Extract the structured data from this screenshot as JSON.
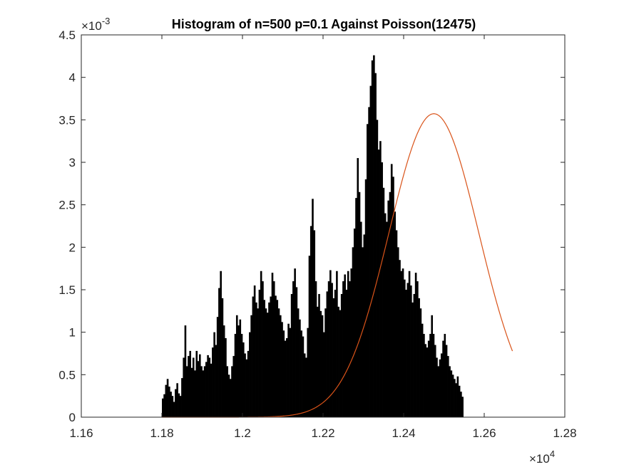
{
  "chart_data": {
    "type": "bar",
    "title": "Histogram of n=500 p=0.1 Against Poisson(12475)",
    "xlabel": "",
    "ylabel": "",
    "x_multiplier": {
      "base": "×10",
      "exponent": "4"
    },
    "y_multiplier": {
      "base": "×10",
      "exponent": "-3"
    },
    "xlim": [
      11600,
      12800
    ],
    "ylim": [
      0,
      0.0045
    ],
    "x_ticks": [
      11600,
      11800,
      12000,
      12200,
      12400,
      12600,
      12800
    ],
    "x_tick_labels": [
      "1.16",
      "1.18",
      "1.2",
      "1.22",
      "1.24",
      "1.26",
      "1.28"
    ],
    "y_ticks": [
      0,
      0.0005,
      0.001,
      0.0015,
      0.002,
      0.0025,
      0.003,
      0.0035,
      0.004,
      0.0045
    ],
    "y_tick_labels": [
      "0",
      "0.5",
      "1",
      "1.5",
      "2",
      "2.5",
      "3",
      "3.5",
      "4",
      "4.5"
    ],
    "grid": false,
    "box": true,
    "histogram": {
      "color": "#000000",
      "bin_width": 4,
      "x_start": 11800,
      "values": [
        0.00022,
        0.00027,
        0.00038,
        0.00045,
        0.00036,
        0.0003,
        0.00025,
        0.00018,
        0.00033,
        0.0004,
        0.00028,
        0.00025,
        0.00046,
        0.0007,
        0.00108,
        0.0006,
        0.00072,
        0.00078,
        0.00058,
        0.0007,
        0.00055,
        0.00078,
        0.00066,
        0.00074,
        0.0006,
        0.00055,
        0.0006,
        0.00065,
        0.00073,
        0.0007,
        0.00063,
        0.00082,
        0.001,
        0.00085,
        0.00118,
        0.00152,
        0.00172,
        0.0014,
        0.00108,
        0.00093,
        0.0006,
        0.0005,
        0.00045,
        0.0006,
        0.00072,
        0.00098,
        0.0012,
        0.00108,
        0.00115,
        0.00098,
        0.00088,
        0.00075,
        0.00068,
        0.00078,
        0.001,
        0.0012,
        0.00142,
        0.00155,
        0.00135,
        0.00128,
        0.0015,
        0.00172,
        0.0016,
        0.00138,
        0.00128,
        0.00123,
        0.00135,
        0.00142,
        0.0017,
        0.0016,
        0.00143,
        0.00138,
        0.00128,
        0.0012,
        0.00112,
        0.00102,
        0.0009,
        0.00093,
        0.0011,
        0.00105,
        0.00145,
        0.0016,
        0.00175,
        0.00153,
        0.00128,
        0.00115,
        0.00102,
        0.00095,
        0.00075,
        0.0007,
        0.00105,
        0.0019,
        0.00225,
        0.00257,
        0.0022,
        0.0016,
        0.0013,
        0.00145,
        0.00125,
        0.0012,
        0.001,
        0.00128,
        0.00148,
        0.0016,
        0.00173,
        0.00158,
        0.0014,
        0.0015,
        0.00172,
        0.0013,
        0.00126,
        0.00145,
        0.0016,
        0.00168,
        0.0015,
        0.00172,
        0.0016,
        0.00175,
        0.002,
        0.00222,
        0.00258,
        0.00305,
        0.00265,
        0.0023,
        0.002,
        0.00215,
        0.0028,
        0.00345,
        0.00365,
        0.0039,
        0.0042,
        0.00426,
        0.00405,
        0.0035,
        0.00315,
        0.00325,
        0.003,
        0.0027,
        0.0024,
        0.0023,
        0.00255,
        0.00265,
        0.00298,
        0.00283,
        0.00242,
        0.0022,
        0.002,
        0.00185,
        0.00172,
        0.00175,
        0.00162,
        0.0015,
        0.00158,
        0.00172,
        0.00155,
        0.00135,
        0.00145,
        0.0017,
        0.0016,
        0.0014,
        0.00128,
        0.0011,
        0.00098,
        0.00086,
        0.00082,
        0.0009,
        0.00098,
        0.0012,
        0.00098,
        0.00085,
        0.0007,
        0.0006,
        0.00068,
        0.00075,
        0.0009,
        0.00098,
        0.00085,
        0.00072,
        0.0006,
        0.00055,
        0.0005,
        0.00045,
        0.0004,
        0.00048,
        0.00037,
        0.0003,
        0.00024
      ]
    },
    "poisson_curve": {
      "color": "#d95319",
      "lambda": 12475,
      "x_range": [
        11800,
        12670
      ]
    }
  }
}
